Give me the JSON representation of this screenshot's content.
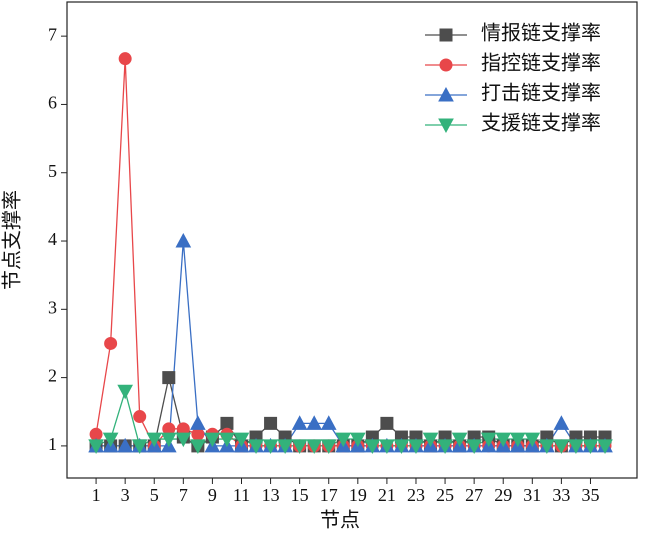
{
  "chart_data": {
    "type": "line",
    "xlabel": "节点",
    "ylabel": "节点支撑率",
    "x": [
      1,
      2,
      3,
      4,
      5,
      6,
      7,
      8,
      9,
      10,
      11,
      12,
      13,
      14,
      15,
      16,
      17,
      18,
      19,
      20,
      21,
      22,
      23,
      24,
      25,
      26,
      27,
      28,
      29,
      30,
      31,
      32,
      33,
      34,
      35,
      36
    ],
    "series": [
      {
        "name": "情报链支撑率",
        "color": "#4d4d4d",
        "marker": "square",
        "values": [
          1,
          1,
          1,
          1,
          1,
          2,
          1.13,
          1,
          1.13,
          1.33,
          1,
          1.13,
          1.33,
          1.13,
          1,
          1,
          1,
          1,
          1,
          1.13,
          1.33,
          1.13,
          1.13,
          1,
          1.13,
          1,
          1.13,
          1.13,
          1,
          1,
          1,
          1.13,
          1,
          1.13,
          1.13,
          1.13
        ]
      },
      {
        "name": "指控链支撑率",
        "color": "#e8474a",
        "marker": "circle",
        "values": [
          1.17,
          2.5,
          6.67,
          1.43,
          1,
          1.25,
          1.25,
          1.17,
          1.17,
          1.17,
          1,
          1,
          1,
          1,
          1,
          1,
          1,
          1,
          1,
          1,
          1,
          1,
          1,
          1,
          1,
          1,
          1,
          1,
          1,
          1,
          1,
          1,
          1,
          1,
          1,
          1
        ]
      },
      {
        "name": "打击链支撑率",
        "color": "#3a6fc4",
        "marker": "triangle-up",
        "values": [
          1,
          1,
          1,
          1,
          1,
          1,
          4,
          1.33,
          1,
          1,
          1,
          1,
          1,
          1,
          1.33,
          1.33,
          1.33,
          1,
          1,
          1,
          1,
          1,
          1,
          1,
          1,
          1,
          1,
          1,
          1,
          1,
          1,
          1,
          1.33,
          1,
          1,
          1
        ]
      },
      {
        "name": "支援链支撑率",
        "color": "#33b27b",
        "marker": "triangle-down",
        "values": [
          1,
          1.1,
          1.8,
          1,
          1.1,
          1.1,
          1.1,
          1,
          1.1,
          1.1,
          1.1,
          1,
          1,
          1,
          1,
          1,
          1,
          1.1,
          1.1,
          1,
          1,
          1,
          1,
          1.1,
          1,
          1.1,
          1,
          1.1,
          1.1,
          1.1,
          1.1,
          1,
          1,
          1,
          1,
          1
        ]
      }
    ],
    "xlim": [
      -1,
      38.2
    ],
    "xticks": [
      1,
      3,
      5,
      7,
      9,
      11,
      13,
      15,
      17,
      19,
      21,
      23,
      25,
      27,
      29,
      31,
      33,
      35
    ],
    "ylim": [
      0.53,
      7.5
    ],
    "yticks": [
      1,
      2,
      3,
      4,
      5,
      6,
      7
    ],
    "grid": false,
    "legend": "upper right"
  }
}
